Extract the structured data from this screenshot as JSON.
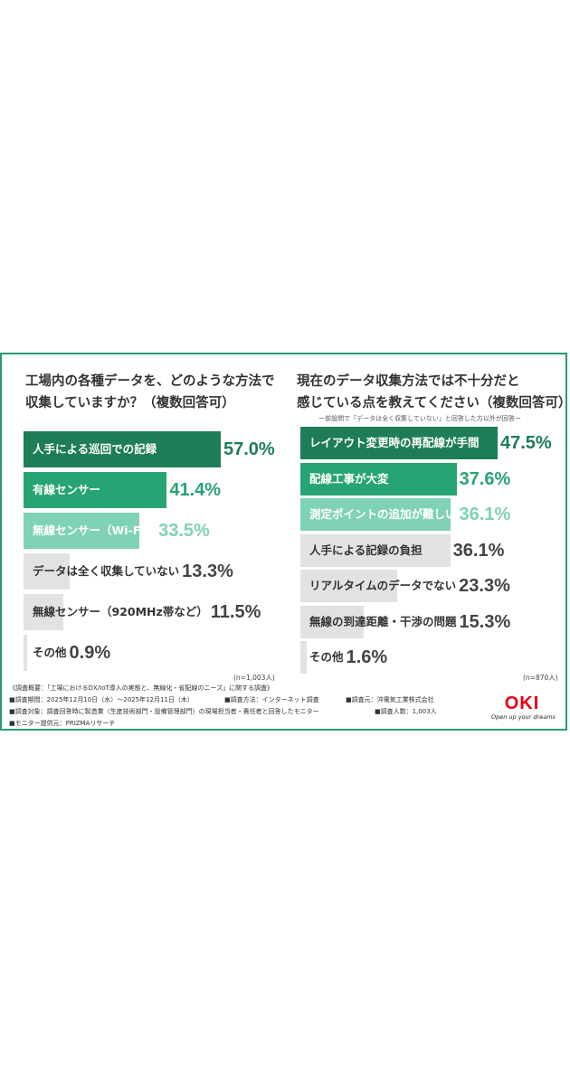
{
  "left_chart": {
    "title_line1": "工場内の各種データを、どのような方法で",
    "title_line2": "収集していますか？（複数回答可）",
    "n_note": "(n=1,003人)"
  },
  "right_chart": {
    "title_line1": "現在のデータ収集方法では不十分だと",
    "title_line2": "感じている点を教えてください（複数回答可）",
    "subnote": "ー前設問で「データは全く収集していない」と回答した方以外が回答ー",
    "n_note": "(n=870人)"
  },
  "chart_data": [
    {
      "type": "bar",
      "orientation": "horizontal",
      "title": "工場内の各種データを、どのような方法で収集していますか？（複数回答可）",
      "categories": [
        "人手による巡回での記録",
        "有線センサー",
        "無線センサー（Wi-Fi）",
        "データは全く収集していない",
        "無線センサー（920MHz帯など）",
        "その他"
      ],
      "values": [
        57.0,
        41.4,
        33.5,
        13.3,
        11.5,
        0.9
      ],
      "value_labels": [
        "57.0%",
        "41.4%",
        "33.5%",
        "13.3%",
        "11.5%",
        "0.9%"
      ],
      "unit": "%",
      "xlim": [
        0,
        57
      ],
      "colors": [
        "#1e7d57",
        "#27a474",
        "#7fd2b4",
        "#e2e2e2",
        "#e2e2e2",
        "#e2e2e2"
      ],
      "value_colors": [
        "#1e7d57",
        "#27a474",
        "#7fd2b4",
        "#444444",
        "#444444",
        "#444444"
      ]
    },
    {
      "type": "bar",
      "orientation": "horizontal",
      "title": "現在のデータ収集方法では不十分だと感じている点を教えてください（複数回答可）",
      "categories": [
        "レイアウト変更時の再配線が手間",
        "配線工事が大変",
        "測定ポイントの追加が難しい",
        "人手による記録の負担",
        "リアルタイムのデータでない",
        "無線の到達距離・干渉の問題",
        "その他"
      ],
      "values": [
        47.5,
        37.6,
        36.1,
        36.1,
        23.3,
        15.3,
        1.6
      ],
      "value_labels": [
        "47.5%",
        "37.6%",
        "36.1%",
        "36.1%",
        "23.3%",
        "15.3%",
        "1.6%"
      ],
      "unit": "%",
      "xlim": [
        0,
        47.5
      ],
      "colors": [
        "#1e7d57",
        "#27a474",
        "#7fd2b4",
        "#e2e2e2",
        "#e2e2e2",
        "#e2e2e2",
        "#e2e2e2"
      ],
      "value_colors": [
        "#1e7d57",
        "#27a474",
        "#7fd2b4",
        "#444444",
        "#444444",
        "#444444",
        "#444444"
      ]
    }
  ],
  "footer": {
    "line1": "《調査概要：「工場におけるDX/IoT導入の実態と、無線化・省配線のニーズ」に関する調査》",
    "line2a": "■調査期間：2025年12月10日（水）〜2025年12月11日（木）",
    "line2b": "■調査方法：インターネット調査",
    "line2c": "■調査元：沖電気工業株式会社",
    "line3a": "■調査対象：調査回答時に製造業（生産技術部門・設備管理部門）の現場担当者・責任者と回答したモニター",
    "line3b": "■調査人数：1,003人",
    "line4": "■モニター提供元：PRIZMAリサーチ"
  },
  "logo": {
    "word": "OKI",
    "tagline": "Open up your dreams",
    "color": "#e60012"
  },
  "colors": {
    "frame": "#2a9a6c"
  }
}
